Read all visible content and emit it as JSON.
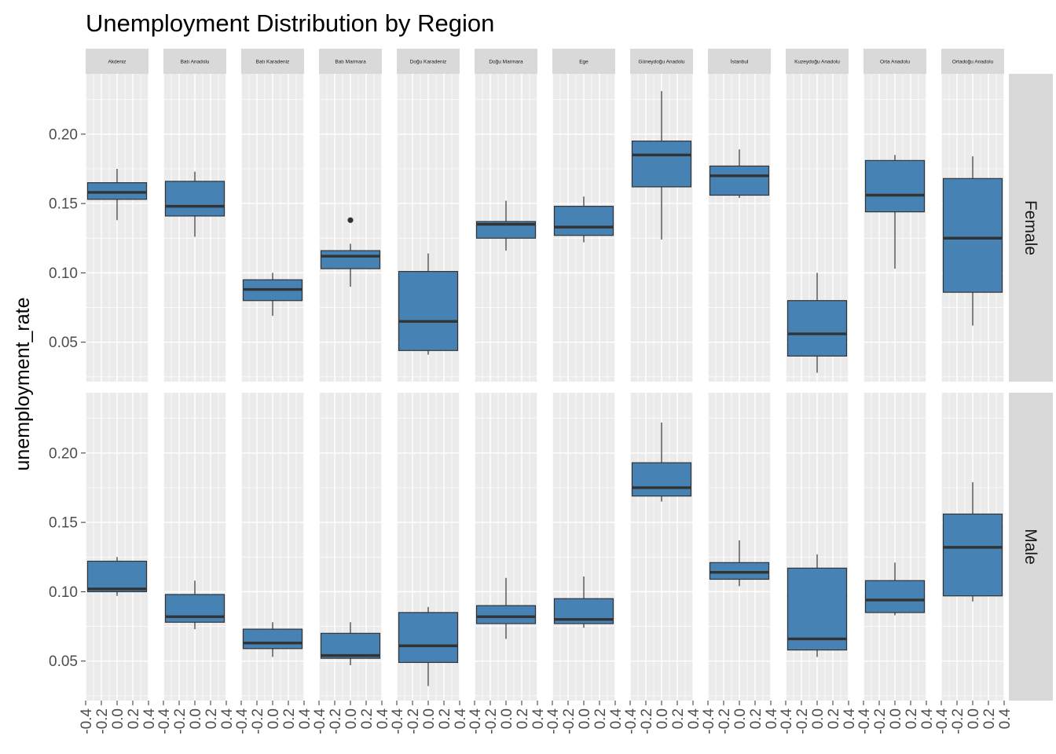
{
  "colors": {
    "panel_background": "#ebebeb",
    "grid": "#ffffff",
    "strip_background": "#d9d9d9",
    "box_fill": "#4682b4",
    "box_line": "#333333",
    "tick_text": "#4d4d4d"
  },
  "chart_data": {
    "type": "boxplot",
    "title": "Unemployment Distribution by Region",
    "xlabel": "",
    "ylabel": "unemployment_rate",
    "facet_columns": [
      "Akdeniz",
      "Batı Anadolu",
      "Batı Karadeniz",
      "Batı Marmara",
      "Doğu Karadeniz",
      "Doğu Marmara",
      "Ege",
      "Güneydoğu Anadolu",
      "İstanbul",
      "Kuzeydoğu Anadolu",
      "Orta Anadolu",
      "Ortadoğu Anadolu"
    ],
    "facet_rows": [
      "Female",
      "Male"
    ],
    "x_ticks": [
      "-0.4",
      "-0.2",
      "0.0",
      "0.2",
      "0.4"
    ],
    "xlim": [
      -0.4,
      0.4
    ],
    "y_ticks": [
      "0.05",
      "0.10",
      "0.15",
      "0.20"
    ],
    "ylim": [
      0.0215,
      0.2435
    ],
    "grid": true,
    "series": [
      {
        "name": "Female",
        "boxes": [
          {
            "region": "Akdeniz",
            "lower_whisker": 0.138,
            "q1": 0.153,
            "median": 0.158,
            "q3": 0.165,
            "upper_whisker": 0.175,
            "outliers": []
          },
          {
            "region": "Batı Anadolu",
            "lower_whisker": 0.126,
            "q1": 0.141,
            "median": 0.148,
            "q3": 0.166,
            "upper_whisker": 0.173,
            "outliers": []
          },
          {
            "region": "Batı Karadeniz",
            "lower_whisker": 0.069,
            "q1": 0.08,
            "median": 0.088,
            "q3": 0.095,
            "upper_whisker": 0.1,
            "outliers": []
          },
          {
            "region": "Batı Marmara",
            "lower_whisker": 0.09,
            "q1": 0.103,
            "median": 0.112,
            "q3": 0.116,
            "upper_whisker": 0.121,
            "outliers": [
              0.138
            ]
          },
          {
            "region": "Doğu Karadeniz",
            "lower_whisker": 0.041,
            "q1": 0.044,
            "median": 0.065,
            "q3": 0.101,
            "upper_whisker": 0.114,
            "outliers": []
          },
          {
            "region": "Doğu Marmara",
            "lower_whisker": 0.116,
            "q1": 0.125,
            "median": 0.135,
            "q3": 0.137,
            "upper_whisker": 0.152,
            "outliers": []
          },
          {
            "region": "Ege",
            "lower_whisker": 0.122,
            "q1": 0.127,
            "median": 0.133,
            "q3": 0.148,
            "upper_whisker": 0.155,
            "outliers": []
          },
          {
            "region": "Güneydoğu Anadolu",
            "lower_whisker": 0.124,
            "q1": 0.162,
            "median": 0.185,
            "q3": 0.195,
            "upper_whisker": 0.231,
            "outliers": []
          },
          {
            "region": "İstanbul",
            "lower_whisker": 0.154,
            "q1": 0.156,
            "median": 0.17,
            "q3": 0.177,
            "upper_whisker": 0.189,
            "outliers": []
          },
          {
            "region": "Kuzeydoğu Anadolu",
            "lower_whisker": 0.028,
            "q1": 0.04,
            "median": 0.056,
            "q3": 0.08,
            "upper_whisker": 0.1,
            "outliers": []
          },
          {
            "region": "Orta Anadolu",
            "lower_whisker": 0.103,
            "q1": 0.144,
            "median": 0.156,
            "q3": 0.181,
            "upper_whisker": 0.185,
            "outliers": []
          },
          {
            "region": "Ortadoğu Anadolu",
            "lower_whisker": 0.062,
            "q1": 0.086,
            "median": 0.125,
            "q3": 0.168,
            "upper_whisker": 0.184,
            "outliers": []
          }
        ]
      },
      {
        "name": "Male",
        "boxes": [
          {
            "region": "Akdeniz",
            "lower_whisker": 0.097,
            "q1": 0.1,
            "median": 0.102,
            "q3": 0.122,
            "upper_whisker": 0.125,
            "outliers": []
          },
          {
            "region": "Batı Anadolu",
            "lower_whisker": 0.073,
            "q1": 0.078,
            "median": 0.082,
            "q3": 0.098,
            "upper_whisker": 0.108,
            "outliers": []
          },
          {
            "region": "Batı Karadeniz",
            "lower_whisker": 0.053,
            "q1": 0.059,
            "median": 0.063,
            "q3": 0.073,
            "upper_whisker": 0.078,
            "outliers": []
          },
          {
            "region": "Batı Marmara",
            "lower_whisker": 0.047,
            "q1": 0.052,
            "median": 0.054,
            "q3": 0.07,
            "upper_whisker": 0.078,
            "outliers": []
          },
          {
            "region": "Doğu Karadeniz",
            "lower_whisker": 0.032,
            "q1": 0.049,
            "median": 0.061,
            "q3": 0.085,
            "upper_whisker": 0.089,
            "outliers": []
          },
          {
            "region": "Doğu Marmara",
            "lower_whisker": 0.066,
            "q1": 0.077,
            "median": 0.082,
            "q3": 0.09,
            "upper_whisker": 0.11,
            "outliers": []
          },
          {
            "region": "Ege",
            "lower_whisker": 0.074,
            "q1": 0.077,
            "median": 0.08,
            "q3": 0.095,
            "upper_whisker": 0.111,
            "outliers": []
          },
          {
            "region": "Güneydoğu Anadolu",
            "lower_whisker": 0.165,
            "q1": 0.169,
            "median": 0.175,
            "q3": 0.193,
            "upper_whisker": 0.222,
            "outliers": []
          },
          {
            "region": "İstanbul",
            "lower_whisker": 0.104,
            "q1": 0.109,
            "median": 0.114,
            "q3": 0.121,
            "upper_whisker": 0.137,
            "outliers": []
          },
          {
            "region": "Kuzeydoğu Anadolu",
            "lower_whisker": 0.053,
            "q1": 0.058,
            "median": 0.066,
            "q3": 0.117,
            "upper_whisker": 0.127,
            "outliers": []
          },
          {
            "region": "Orta Anadolu",
            "lower_whisker": 0.083,
            "q1": 0.085,
            "median": 0.094,
            "q3": 0.108,
            "upper_whisker": 0.121,
            "outliers": []
          },
          {
            "region": "Ortadoğu Anadolu",
            "lower_whisker": 0.093,
            "q1": 0.097,
            "median": 0.132,
            "q3": 0.156,
            "upper_whisker": 0.179,
            "outliers": []
          }
        ]
      }
    ]
  }
}
